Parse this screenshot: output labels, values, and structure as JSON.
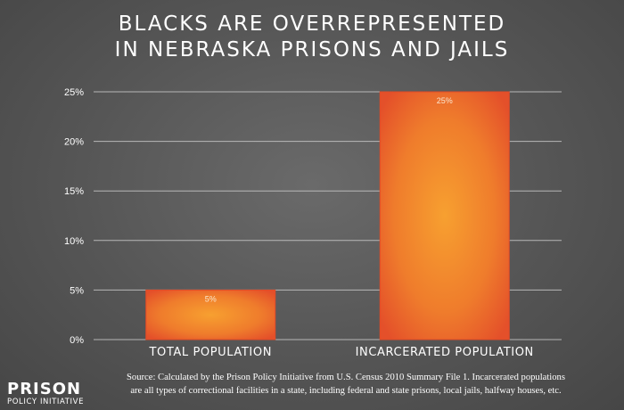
{
  "title_line1": "BLACKS ARE OVERREPRESENTED",
  "title_line2": "IN NEBRASKA PRISONS AND JAILS",
  "chart_data": {
    "type": "bar",
    "title": "BLACKS ARE OVERREPRESENTED IN NEBRASKA PRISONS AND JAILS",
    "categories": [
      "TOTAL POPULATION",
      "INCARCERATED POPULATION"
    ],
    "values": [
      5,
      25
    ],
    "value_labels": [
      "5%",
      "25%"
    ],
    "ylim": [
      0,
      25
    ],
    "yticks": [
      0,
      5,
      10,
      15,
      20,
      25
    ],
    "ytick_labels": [
      "0%",
      "5%",
      "10%",
      "15%",
      "20%",
      "25%"
    ],
    "xlabel": "",
    "ylabel": "",
    "grid": true,
    "bar_color": "#f08a2a",
    "bar_edge_color": "#e24a26"
  },
  "logo": {
    "main": "PRISON",
    "sub": "POLICY INITIATIVE"
  },
  "source_line1": "Source: Calculated by the Prison Policy Initiative from U.S. Census 2010 Summary File 1. Incarcerated populations",
  "source_line2": "are all types of correctional facilities in a state, including federal and state prisons, local jails, halfway houses, etc."
}
